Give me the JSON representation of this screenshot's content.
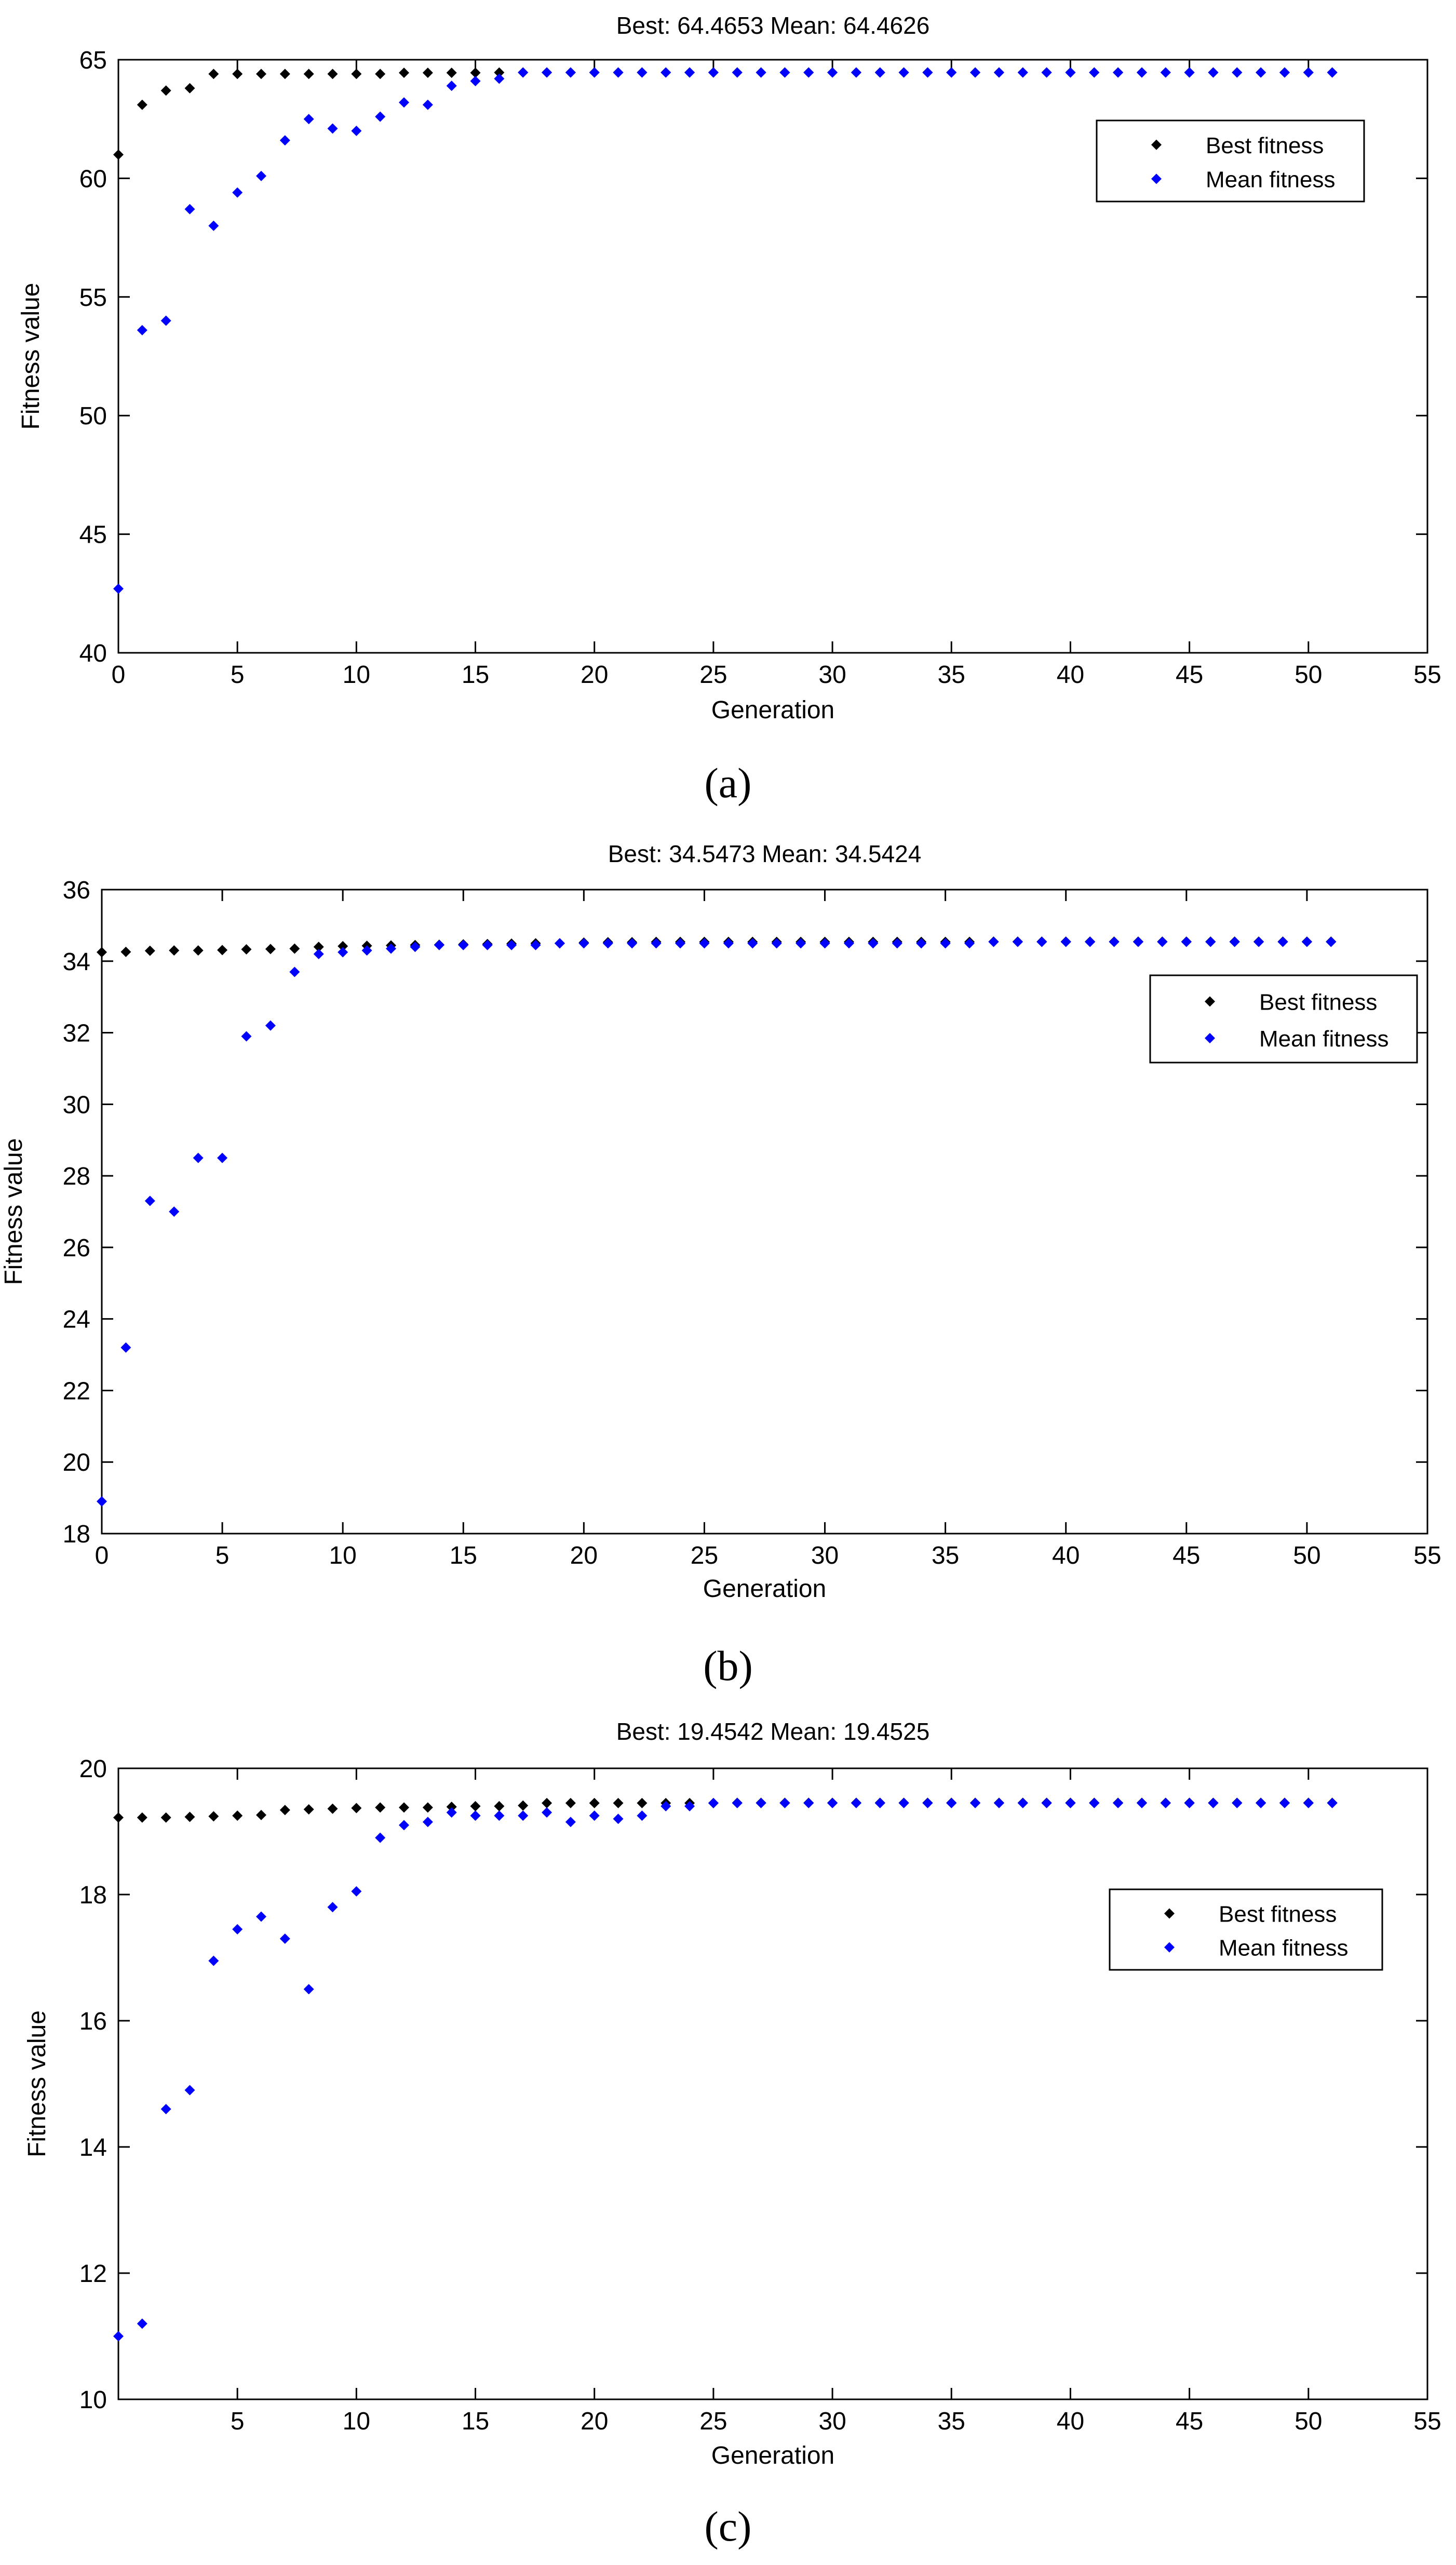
{
  "colors": {
    "best": "#000000",
    "mean": "#0000ff",
    "axis": "#000000",
    "background": "#ffffff"
  },
  "chart_data": [
    {
      "type": "scatter",
      "caption": "(a)",
      "title": "Best:  64.4653 Mean:  64.4626",
      "xlabel": "Generation",
      "ylabel": "Fitness value",
      "xlim": [
        0,
        55
      ],
      "ylim": [
        40,
        65
      ],
      "xticks": [
        0,
        5,
        10,
        15,
        20,
        25,
        30,
        35,
        40,
        45,
        50,
        55
      ],
      "xtick_labels": [
        "0",
        "5",
        "10",
        "15",
        "20",
        "25",
        "30",
        "35",
        "40",
        "45",
        "50",
        "55"
      ],
      "yticks": [
        40,
        45,
        50,
        55,
        60,
        65
      ],
      "ytick_labels": [
        "40",
        "45",
        "50",
        "55",
        "60",
        "65"
      ],
      "legend": {
        "position": "top-right",
        "entries": [
          "Best fitness",
          "Mean fitness"
        ]
      },
      "series": [
        {
          "name": "Best fitness",
          "x": [
            0,
            1,
            2,
            3,
            4,
            5,
            6,
            7,
            8,
            9,
            10,
            11,
            12,
            13,
            14,
            15,
            16,
            17,
            18,
            19,
            20,
            21,
            22,
            23,
            24,
            25,
            26,
            27,
            28,
            29,
            30,
            31,
            32,
            33,
            34,
            35,
            36,
            37,
            38,
            39,
            40,
            41,
            42,
            43,
            44,
            45,
            46,
            47,
            48,
            49,
            50,
            51
          ],
          "y": [
            61.0,
            63.1,
            63.7,
            63.8,
            64.4,
            64.4,
            64.4,
            64.4,
            64.4,
            64.4,
            64.4,
            64.4,
            64.45,
            64.45,
            64.45,
            64.45,
            64.46,
            64.465,
            64.465,
            64.465,
            64.465,
            64.465,
            64.465,
            64.465,
            64.465,
            64.465,
            64.465,
            64.465,
            64.465,
            64.465,
            64.465,
            64.465,
            64.465,
            64.465,
            64.465,
            64.465,
            64.465,
            64.465,
            64.465,
            64.465,
            64.465,
            64.465,
            64.465,
            64.465,
            64.465,
            64.465,
            64.465,
            64.465,
            64.465,
            64.465,
            64.465,
            64.465
          ]
        },
        {
          "name": "Mean fitness",
          "x": [
            0,
            1,
            2,
            3,
            4,
            5,
            6,
            7,
            8,
            9,
            10,
            11,
            12,
            13,
            14,
            15,
            16,
            17,
            18,
            19,
            20,
            21,
            22,
            23,
            24,
            25,
            26,
            27,
            28,
            29,
            30,
            31,
            32,
            33,
            34,
            35,
            36,
            37,
            38,
            39,
            40,
            41,
            42,
            43,
            44,
            45,
            46,
            47,
            48,
            49,
            50,
            51
          ],
          "y": [
            42.7,
            53.6,
            54.0,
            58.7,
            58.0,
            59.4,
            60.1,
            61.6,
            62.5,
            62.1,
            62.0,
            62.6,
            63.2,
            63.1,
            63.9,
            64.1,
            64.2,
            64.46,
            64.46,
            64.46,
            64.46,
            64.46,
            64.46,
            64.46,
            64.46,
            64.46,
            64.46,
            64.46,
            64.46,
            64.46,
            64.46,
            64.46,
            64.46,
            64.46,
            64.46,
            64.46,
            64.46,
            64.46,
            64.46,
            64.46,
            64.46,
            64.46,
            64.46,
            64.46,
            64.46,
            64.46,
            64.46,
            64.46,
            64.46,
            64.46,
            64.46,
            64.46
          ]
        }
      ]
    },
    {
      "type": "scatter",
      "caption": "(b)",
      "title": "Best:  34.5473 Mean:  34.5424",
      "xlabel": "Generation",
      "ylabel": "Fitness value",
      "xlim": [
        0,
        55
      ],
      "ylim": [
        18,
        36
      ],
      "xticks": [
        0,
        5,
        10,
        15,
        20,
        25,
        30,
        35,
        40,
        45,
        50,
        55
      ],
      "xtick_labels": [
        "0",
        "5",
        "10",
        "15",
        "20",
        "25",
        "30",
        "35",
        "40",
        "45",
        "50",
        "55"
      ],
      "yticks": [
        18,
        20,
        22,
        24,
        26,
        28,
        30,
        32,
        34,
        36
      ],
      "ytick_labels": [
        "18",
        "20",
        "22",
        "24",
        "26",
        "28",
        "30",
        "32",
        "34",
        "36"
      ],
      "legend": {
        "position": "right",
        "entries": [
          "Best fitness",
          "Mean fitness"
        ]
      },
      "series": [
        {
          "name": "Best fitness",
          "x": [
            0,
            1,
            2,
            3,
            4,
            5,
            6,
            7,
            8,
            9,
            10,
            11,
            12,
            13,
            14,
            15,
            16,
            17,
            18,
            19,
            20,
            21,
            22,
            23,
            24,
            25,
            26,
            27,
            28,
            29,
            30,
            31,
            32,
            33,
            34,
            35,
            36,
            37,
            38,
            39,
            40,
            41,
            42,
            43,
            44,
            45,
            46,
            47,
            48,
            49,
            50,
            51
          ],
          "y": [
            34.25,
            34.26,
            34.29,
            34.3,
            34.3,
            34.31,
            34.33,
            34.34,
            34.35,
            34.4,
            34.42,
            34.43,
            34.44,
            34.45,
            34.46,
            34.47,
            34.48,
            34.49,
            34.5,
            34.5,
            34.52,
            34.53,
            34.53,
            34.54,
            34.54,
            34.54,
            34.54,
            34.54,
            34.54,
            34.54,
            34.54,
            34.54,
            34.54,
            34.54,
            34.54,
            34.54,
            34.54,
            34.547,
            34.547,
            34.547,
            34.547,
            34.547,
            34.547,
            34.547,
            34.547,
            34.547,
            34.547,
            34.547,
            34.547,
            34.547,
            34.547,
            34.547
          ]
        },
        {
          "name": "Mean fitness",
          "x": [
            0,
            1,
            2,
            3,
            4,
            5,
            6,
            7,
            8,
            9,
            10,
            11,
            12,
            13,
            14,
            15,
            16,
            17,
            18,
            19,
            20,
            21,
            22,
            23,
            24,
            25,
            26,
            27,
            28,
            29,
            30,
            31,
            32,
            33,
            34,
            35,
            36,
            37,
            38,
            39,
            40,
            41,
            42,
            43,
            44,
            45,
            46,
            47,
            48,
            49,
            50,
            51
          ],
          "y": [
            18.9,
            23.2,
            27.3,
            27.0,
            28.5,
            28.5,
            31.9,
            32.2,
            33.7,
            34.2,
            34.25,
            34.3,
            34.35,
            34.4,
            34.45,
            34.45,
            34.45,
            34.45,
            34.45,
            34.5,
            34.5,
            34.5,
            34.5,
            34.5,
            34.5,
            34.5,
            34.5,
            34.5,
            34.5,
            34.5,
            34.5,
            34.5,
            34.5,
            34.5,
            34.5,
            34.5,
            34.5,
            34.54,
            34.54,
            34.54,
            34.54,
            34.54,
            34.54,
            34.54,
            34.54,
            34.54,
            34.54,
            34.54,
            34.54,
            34.54,
            34.54,
            34.54
          ]
        }
      ]
    },
    {
      "type": "scatter",
      "caption": "(c)",
      "title": "Best:  19.4542 Mean:  19.4525",
      "xlabel": "Generation",
      "ylabel": "Fitness value",
      "xlim": [
        0,
        55
      ],
      "ylim": [
        10,
        20
      ],
      "xticks": [
        5,
        10,
        15,
        20,
        25,
        30,
        35,
        40,
        45,
        50,
        55
      ],
      "xtick_labels": [
        "5",
        "10",
        "15",
        "20",
        "25",
        "30",
        "35",
        "40",
        "45",
        "50",
        "55"
      ],
      "yticks": [
        10,
        12,
        14,
        16,
        18,
        20
      ],
      "ytick_labels": [
        "10",
        "12",
        "14",
        "16",
        "18",
        "20"
      ],
      "legend": {
        "position": "right",
        "entries": [
          "Best fitness",
          "Mean fitness"
        ]
      },
      "series": [
        {
          "name": "Best fitness",
          "x": [
            0,
            1,
            2,
            3,
            4,
            5,
            6,
            7,
            8,
            9,
            10,
            11,
            12,
            13,
            14,
            15,
            16,
            17,
            18,
            19,
            20,
            21,
            22,
            23,
            24,
            25,
            26,
            27,
            28,
            29,
            30,
            31,
            32,
            33,
            34,
            35,
            36,
            37,
            38,
            39,
            40,
            41,
            42,
            43,
            44,
            45,
            46,
            47,
            48,
            49,
            50,
            51
          ],
          "y": [
            19.22,
            19.22,
            19.22,
            19.23,
            19.24,
            19.25,
            19.26,
            19.34,
            19.35,
            19.36,
            19.37,
            19.38,
            19.38,
            19.38,
            19.39,
            19.4,
            19.4,
            19.41,
            19.45,
            19.45,
            19.45,
            19.45,
            19.45,
            19.45,
            19.45,
            19.45,
            19.454,
            19.454,
            19.454,
            19.454,
            19.454,
            19.454,
            19.454,
            19.454,
            19.454,
            19.454,
            19.454,
            19.454,
            19.454,
            19.454,
            19.454,
            19.454,
            19.454,
            19.454,
            19.454,
            19.454,
            19.454,
            19.454,
            19.454,
            19.454,
            19.454,
            19.454
          ]
        },
        {
          "name": "Mean fitness",
          "x": [
            0,
            1,
            2,
            3,
            4,
            5,
            6,
            7,
            8,
            9,
            10,
            11,
            12,
            13,
            14,
            15,
            16,
            17,
            18,
            19,
            20,
            21,
            22,
            23,
            24,
            25,
            26,
            27,
            28,
            29,
            30,
            31,
            32,
            33,
            34,
            35,
            36,
            37,
            38,
            39,
            40,
            41,
            42,
            43,
            44,
            45,
            46,
            47,
            48,
            49,
            50,
            51
          ],
          "y": [
            11.0,
            11.2,
            14.6,
            14.9,
            16.95,
            17.45,
            17.65,
            17.3,
            16.5,
            17.8,
            18.05,
            18.9,
            19.1,
            19.15,
            19.3,
            19.25,
            19.25,
            19.25,
            19.3,
            19.15,
            19.25,
            19.2,
            19.25,
            19.4,
            19.4,
            19.45,
            19.45,
            19.45,
            19.45,
            19.45,
            19.45,
            19.45,
            19.45,
            19.45,
            19.45,
            19.45,
            19.45,
            19.45,
            19.45,
            19.45,
            19.45,
            19.45,
            19.45,
            19.45,
            19.45,
            19.45,
            19.45,
            19.45,
            19.45,
            19.45,
            19.45,
            19.45
          ]
        }
      ]
    }
  ]
}
